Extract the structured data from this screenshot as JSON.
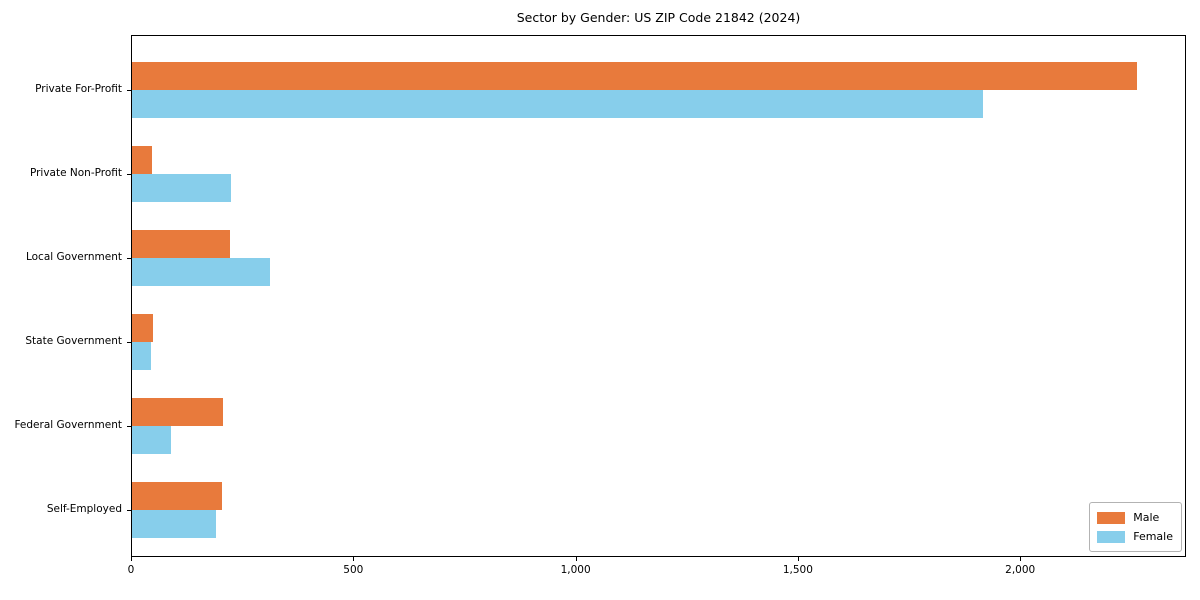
{
  "title": "Sector by Gender: US ZIP Code 21842 (2024)",
  "colors": {
    "male": "#e87a3c",
    "female": "#87ceeb",
    "text": "#000000",
    "spine": "#000000",
    "legend_border": "#b3b3b3"
  },
  "legend": {
    "items": [
      {
        "label": "Male",
        "color": "#e87a3c"
      },
      {
        "label": "Female",
        "color": "#87ceeb"
      }
    ],
    "position": "lower right"
  },
  "chart_data": {
    "type": "bar",
    "orientation": "horizontal",
    "title": "Sector by Gender: US ZIP Code 21842 (2024)",
    "categories": [
      "Private For-Profit",
      "Private Non-Profit",
      "Local Government",
      "State Government",
      "Federal Government",
      "Self-Employed"
    ],
    "series": [
      {
        "name": "Male",
        "color": "#e87a3c",
        "values": [
          2260,
          45,
          220,
          47,
          205,
          203
        ]
      },
      {
        "name": "Female",
        "color": "#87ceeb",
        "values": [
          1915,
          222,
          310,
          43,
          88,
          188
        ]
      }
    ],
    "xlabel": "",
    "ylabel": "",
    "xlim": [
      0,
      2373
    ],
    "xticks": [
      0,
      500,
      1000,
      1500,
      2000
    ],
    "xtick_labels": [
      "0",
      "500",
      "1,000",
      "1,500",
      "2,000"
    ],
    "grid": false,
    "legend_position": "lower right"
  }
}
